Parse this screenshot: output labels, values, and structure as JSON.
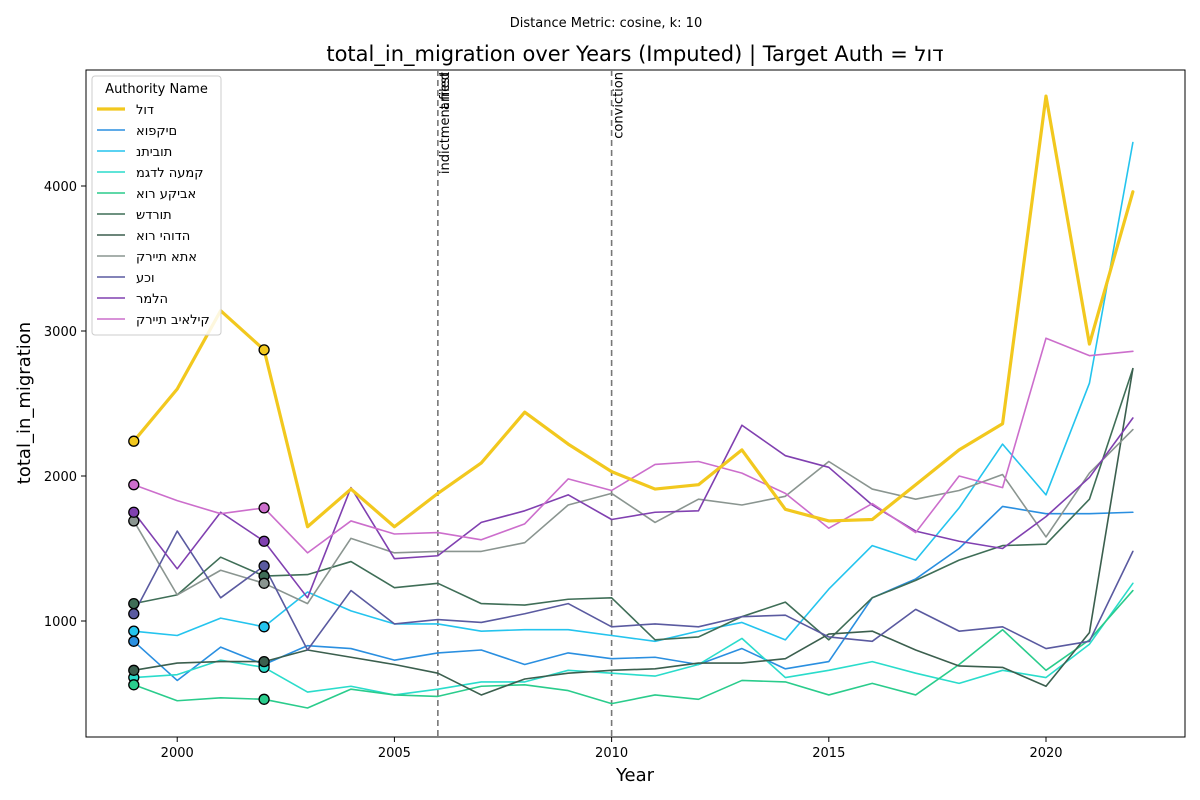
{
  "chart_data": {
    "type": "line",
    "suptitle": "Distance Metric: cosine, k: 10",
    "title": "total_in_migration over Years (Imputed) | Target Auth = דול",
    "xlabel": "Year",
    "ylabel": "total_in_migration",
    "xlim": [
      1997.9,
      2023.2
    ],
    "ylim": [
      200,
      4800
    ],
    "xticks": [
      2000,
      2005,
      2010,
      2015,
      2020
    ],
    "yticks": [
      1000,
      2000,
      3000,
      4000
    ],
    "grid": false,
    "legend": {
      "title": "Authority Name",
      "placement": "top-left"
    },
    "x": [
      1999,
      2000,
      2001,
      2002,
      2003,
      2004,
      2005,
      2006,
      2007,
      2008,
      2009,
      2010,
      2011,
      2012,
      2013,
      2014,
      2015,
      2016,
      2017,
      2018,
      2019,
      2020,
      2021,
      2022
    ],
    "events": [
      {
        "x": 2006,
        "labels": [
          "indictment filed",
          "arrest"
        ]
      },
      {
        "x": 2010,
        "labels": [
          "conviction"
        ]
      }
    ],
    "imputed_years": [
      1999,
      2002
    ],
    "series": [
      {
        "name": "דול",
        "color": "#f2c81e",
        "width": 3.2,
        "target": true,
        "values": [
          2240,
          2600,
          3140,
          2870,
          1650,
          1910,
          1650,
          1880,
          2090,
          2440,
          2220,
          2030,
          1910,
          1940,
          2180,
          1770,
          1690,
          1700,
          1940,
          2180,
          2360,
          4620,
          2910,
          3960
        ]
      },
      {
        "name": "םיקפוא",
        "color": "#2a8fe0",
        "width": 1.6,
        "values": [
          860,
          590,
          820,
          700,
          830,
          810,
          730,
          780,
          800,
          700,
          780,
          740,
          750,
          700,
          810,
          670,
          720,
          1160,
          1290,
          1500,
          1790,
          1740,
          1740,
          1750
        ]
      },
      {
        "name": "תוביתנ",
        "color": "#24c4ee",
        "width": 1.6,
        "values": [
          930,
          900,
          1020,
          960,
          1200,
          1070,
          980,
          980,
          930,
          940,
          940,
          900,
          860,
          930,
          990,
          870,
          1220,
          1520,
          1420,
          1780,
          2220,
          1870,
          2640,
          4300
        ]
      },
      {
        "name": "קמעה לדגמ",
        "color": "#2adccb",
        "width": 1.6,
        "values": [
          610,
          630,
          730,
          680,
          510,
          550,
          490,
          530,
          580,
          580,
          660,
          640,
          620,
          700,
          880,
          610,
          660,
          720,
          640,
          570,
          660,
          610,
          840,
          1260
        ]
      },
      {
        "name": "אביקע רוא",
        "color": "#2acc8c",
        "width": 1.6,
        "values": [
          560,
          450,
          470,
          460,
          400,
          530,
          490,
          480,
          550,
          560,
          520,
          430,
          490,
          460,
          590,
          580,
          490,
          570,
          490,
          700,
          940,
          660,
          870,
          1210
        ]
      },
      {
        "name": "תורדש",
        "color": "#3f6e57",
        "width": 1.6,
        "values": [
          1120,
          1180,
          1440,
          1310,
          1320,
          1410,
          1230,
          1260,
          1120,
          1110,
          1150,
          1160,
          870,
          890,
          1030,
          1130,
          870,
          1160,
          1280,
          1420,
          1520,
          1530,
          1840,
          2740
        ]
      },
      {
        "name": "הדוהי רוא",
        "color": "#3b5f4e",
        "width": 1.6,
        "values": [
          660,
          710,
          720,
          720,
          800,
          750,
          700,
          640,
          490,
          600,
          640,
          660,
          670,
          710,
          710,
          740,
          910,
          930,
          800,
          690,
          680,
          550,
          920,
          2740
        ]
      },
      {
        "name": "אתא תיירק",
        "color": "#8a9590",
        "width": 1.6,
        "values": [
          1690,
          1180,
          1350,
          1260,
          1120,
          1570,
          1470,
          1480,
          1480,
          1540,
          1800,
          1880,
          1680,
          1840,
          1800,
          1860,
          2100,
          1910,
          1840,
          1900,
          2010,
          1580,
          2020,
          2320
        ]
      },
      {
        "name": "וכע",
        "color": "#5a5aa0",
        "width": 1.6,
        "values": [
          1050,
          1620,
          1160,
          1380,
          800,
          1210,
          980,
          1010,
          990,
          1050,
          1120,
          960,
          980,
          960,
          1030,
          1040,
          890,
          860,
          1080,
          930,
          960,
          810,
          860,
          1480
        ]
      },
      {
        "name": "הלמר",
        "color": "#8040b0",
        "width": 1.6,
        "values": [
          1750,
          1360,
          1750,
          1550,
          1160,
          1920,
          1430,
          1450,
          1680,
          1760,
          1870,
          1700,
          1750,
          1760,
          2350,
          2140,
          2060,
          1800,
          1620,
          1550,
          1500,
          1720,
          1990,
          2400
        ]
      },
      {
        "name": "קילאיב תיירק",
        "color": "#cc6ecc",
        "width": 1.6,
        "values": [
          1940,
          1830,
          1740,
          1780,
          1470,
          1690,
          1600,
          1610,
          1560,
          1670,
          1980,
          1900,
          2080,
          2100,
          2020,
          1880,
          1640,
          1810,
          1610,
          2000,
          1920,
          2950,
          2830,
          2860
        ]
      }
    ]
  }
}
